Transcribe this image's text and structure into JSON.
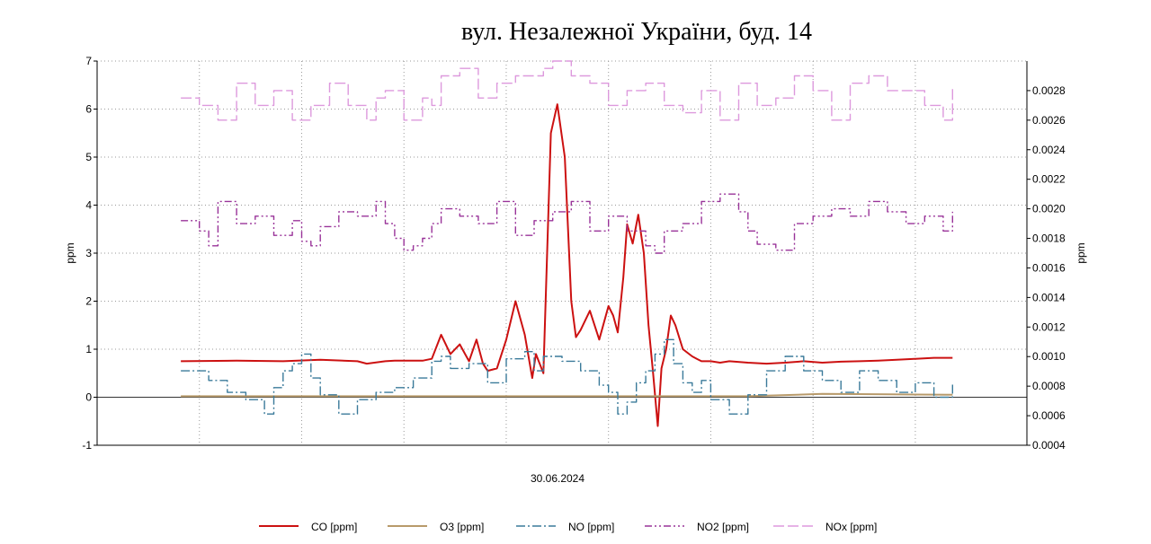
{
  "chart_data": {
    "type": "line",
    "title": "вул. Незалежної України, буд. 14",
    "xlabel": "30.06.2024",
    "ylabel_left": "ppm",
    "ylabel_right": "ppm",
    "ylim_left": [
      -1,
      7
    ],
    "yticks_left": [
      "-1",
      "0",
      "1",
      "2",
      "3",
      "4",
      "5",
      "6",
      "7"
    ],
    "ylim_right": [
      0.0004,
      0.003
    ],
    "yticks_right": [
      "0.0004",
      "0.0006",
      "0.0008",
      "0.0010",
      "0.0012",
      "0.0014",
      "0.0016",
      "0.0018",
      "0.0020",
      "0.0022",
      "0.0024",
      "0.0026",
      "0.0028"
    ],
    "x_range": [
      0,
      100
    ],
    "x_gridlines": [
      11,
      22,
      33,
      44,
      55,
      66,
      77,
      88
    ],
    "grid": true,
    "legend_position": "bottom",
    "series": [
      {
        "name": "CO [ppm]",
        "axis": "left",
        "color": "#cc1111",
        "dash": "solid",
        "x": [
          9,
          15,
          20,
          24,
          28,
          29,
          31,
          32,
          34,
          35,
          36,
          37,
          38,
          39,
          40,
          40.8,
          41.5,
          42,
          43,
          44,
          45,
          46,
          46.8,
          47.2,
          48,
          48.8,
          49.5,
          50.3,
          51,
          51.5,
          52,
          53,
          54,
          55,
          55.5,
          56,
          56.6,
          57,
          57.6,
          58.2,
          58.8,
          59.3,
          59.8,
          60.3,
          60.7,
          61.2,
          61.7,
          62.2,
          63,
          64,
          64.5,
          65,
          66,
          67,
          68,
          70,
          72,
          74,
          76,
          78,
          80,
          82,
          84,
          86,
          88,
          90,
          92
        ],
        "y": [
          0.75,
          0.76,
          0.75,
          0.78,
          0.75,
          0.7,
          0.75,
          0.76,
          0.76,
          0.76,
          0.8,
          1.3,
          0.9,
          1.1,
          0.75,
          1.2,
          0.7,
          0.55,
          0.6,
          1.2,
          2.0,
          1.3,
          0.4,
          0.9,
          0.5,
          5.5,
          6.1,
          5.0,
          2.0,
          1.25,
          1.4,
          1.8,
          1.2,
          1.9,
          1.7,
          1.35,
          2.5,
          3.6,
          3.2,
          3.8,
          3.0,
          1.5,
          0.5,
          -0.6,
          0.6,
          1.0,
          1.7,
          1.5,
          1.0,
          0.85,
          0.8,
          0.75,
          0.75,
          0.72,
          0.75,
          0.72,
          0.7,
          0.72,
          0.75,
          0.72,
          0.74,
          0.75,
          0.76,
          0.78,
          0.8,
          0.82,
          0.82
        ]
      },
      {
        "name": "O3 [ppm]",
        "axis": "left",
        "color": "#b89a6a",
        "dash": "solid",
        "x": [
          9,
          30,
          60,
          70,
          78,
          85,
          92
        ],
        "y": [
          0.02,
          0.02,
          0.02,
          0.02,
          0.07,
          0.06,
          0.05
        ]
      },
      {
        "name": "NO [ppm]",
        "axis": "left",
        "color": "#3a7a9a",
        "dash": "10,3,2,3",
        "x": [
          9,
          12,
          14,
          16,
          18,
          19,
          20,
          21,
          22,
          23,
          24,
          26,
          28,
          30,
          32,
          34,
          36,
          37,
          38,
          40,
          42,
          44,
          46,
          47,
          48,
          50,
          52,
          54,
          55,
          56,
          57,
          58,
          59,
          60,
          61,
          62,
          63,
          64,
          65,
          66,
          68,
          70,
          72,
          74,
          76,
          78,
          80,
          82,
          84,
          86,
          88,
          90,
          92
        ],
        "y": [
          0.55,
          0.35,
          0.1,
          -0.05,
          -0.35,
          0.2,
          0.55,
          0.7,
          0.9,
          0.4,
          0.05,
          -0.35,
          -0.05,
          0.1,
          0.2,
          0.4,
          0.75,
          0.85,
          0.6,
          0.7,
          0.3,
          0.8,
          0.95,
          0.55,
          0.85,
          0.75,
          0.55,
          0.25,
          0.1,
          -0.35,
          -0.1,
          0.3,
          0.55,
          0.9,
          1.2,
          0.7,
          0.3,
          0.1,
          0.35,
          -0.05,
          -0.35,
          0.05,
          0.55,
          0.85,
          0.55,
          0.35,
          0.1,
          0.55,
          0.35,
          0.1,
          0.3,
          0.0,
          0.3
        ]
      },
      {
        "name": "NO2 [ppm]",
        "axis": "right",
        "color": "#993399",
        "dash": "8,3,2,3,2,3",
        "x": [
          9,
          11,
          12,
          13,
          15,
          17,
          19,
          21,
          22,
          23,
          24,
          26,
          28,
          30,
          31,
          32,
          33,
          34,
          35,
          36,
          37,
          39,
          41,
          43,
          45,
          47,
          49,
          51,
          53,
          55,
          57,
          59,
          60,
          61,
          63,
          65,
          67,
          69,
          70,
          71,
          73,
          75,
          77,
          79,
          81,
          83,
          85,
          87,
          89,
          91,
          92
        ],
        "y": [
          0.00192,
          0.00185,
          0.00175,
          0.00205,
          0.0019,
          0.00195,
          0.00182,
          0.00192,
          0.00178,
          0.00175,
          0.00188,
          0.00198,
          0.00195,
          0.00205,
          0.0019,
          0.0018,
          0.00172,
          0.00175,
          0.0018,
          0.0019,
          0.002,
          0.00195,
          0.0019,
          0.00205,
          0.00182,
          0.00192,
          0.00198,
          0.00205,
          0.00185,
          0.00195,
          0.00185,
          0.00175,
          0.0017,
          0.00185,
          0.0019,
          0.00205,
          0.0021,
          0.00198,
          0.00185,
          0.00176,
          0.00172,
          0.0019,
          0.00195,
          0.002,
          0.00195,
          0.00205,
          0.00198,
          0.0019,
          0.00195,
          0.00185,
          0.00198
        ]
      },
      {
        "name": "NOx [ppm]",
        "axis": "right",
        "color": "#dd99dd",
        "dash": "12,4",
        "x": [
          9,
          11,
          13,
          15,
          17,
          19,
          21,
          23,
          25,
          27,
          29,
          30,
          31,
          33,
          35,
          36,
          37,
          39,
          41,
          43,
          45,
          47,
          48,
          49,
          51,
          53,
          55,
          57,
          59,
          61,
          63,
          65,
          67,
          69,
          71,
          73,
          75,
          77,
          79,
          81,
          83,
          85,
          87,
          89,
          91,
          92
        ],
        "y": [
          0.00275,
          0.0027,
          0.0026,
          0.00285,
          0.0027,
          0.0028,
          0.0026,
          0.0027,
          0.00285,
          0.0027,
          0.0026,
          0.00275,
          0.0028,
          0.0026,
          0.00275,
          0.0027,
          0.0029,
          0.00295,
          0.00275,
          0.00285,
          0.0029,
          0.0029,
          0.00295,
          0.003,
          0.0029,
          0.00285,
          0.0027,
          0.0028,
          0.00285,
          0.0027,
          0.00265,
          0.0028,
          0.0026,
          0.00285,
          0.0027,
          0.00275,
          0.0029,
          0.0028,
          0.0026,
          0.00285,
          0.0029,
          0.0028,
          0.0028,
          0.0027,
          0.0026,
          0.00282
        ]
      }
    ]
  }
}
